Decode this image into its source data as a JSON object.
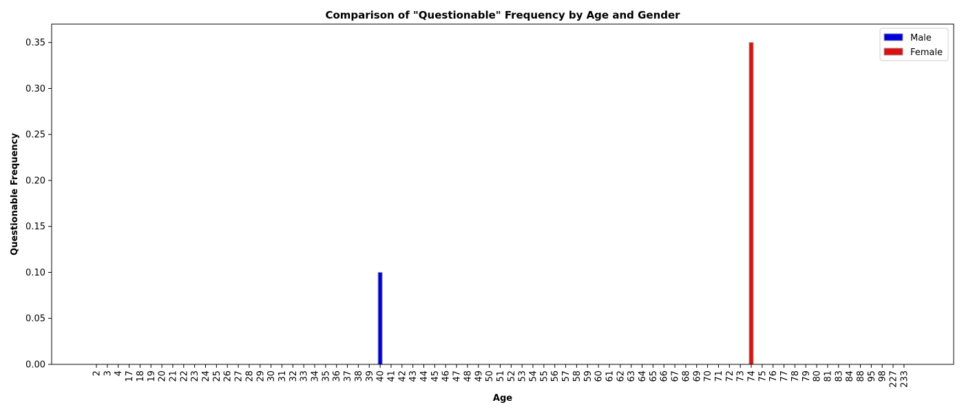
{
  "chart_data": {
    "type": "bar",
    "title": "Comparison of \"Questionable\" Frequency by Age and Gender",
    "xlabel": "Age",
    "ylabel": "Questionable Frequency",
    "categories": [
      "2",
      "3",
      "4",
      "17",
      "18",
      "19",
      "20",
      "21",
      "22",
      "23",
      "24",
      "25",
      "26",
      "27",
      "28",
      "29",
      "30",
      "31",
      "32",
      "33",
      "34",
      "35",
      "36",
      "37",
      "38",
      "39",
      "40",
      "41",
      "42",
      "43",
      "44",
      "45",
      "46",
      "47",
      "48",
      "49",
      "50",
      "51",
      "52",
      "53",
      "54",
      "55",
      "56",
      "57",
      "58",
      "59",
      "60",
      "61",
      "62",
      "63",
      "64",
      "65",
      "66",
      "67",
      "68",
      "69",
      "70",
      "71",
      "72",
      "73",
      "74",
      "75",
      "76",
      "77",
      "78",
      "79",
      "80",
      "81",
      "83",
      "84",
      "88",
      "95",
      "98",
      "227",
      "233"
    ],
    "ylim": [
      0,
      0.37
    ],
    "yticks": [
      "0.00",
      "0.05",
      "0.10",
      "0.15",
      "0.20",
      "0.25",
      "0.30",
      "0.35"
    ],
    "ytick_values": [
      0,
      0.05,
      0.1,
      0.15,
      0.2,
      0.25,
      0.3,
      0.35
    ],
    "grid": false,
    "legend_position": "top-right",
    "series": [
      {
        "name": "Male",
        "color": "#0000dd",
        "points": [
          {
            "category": "40",
            "value": 0.1
          }
        ]
      },
      {
        "name": "Female",
        "color": "#dd1111",
        "points": [
          {
            "category": "74",
            "value": 0.35
          }
        ]
      }
    ]
  }
}
